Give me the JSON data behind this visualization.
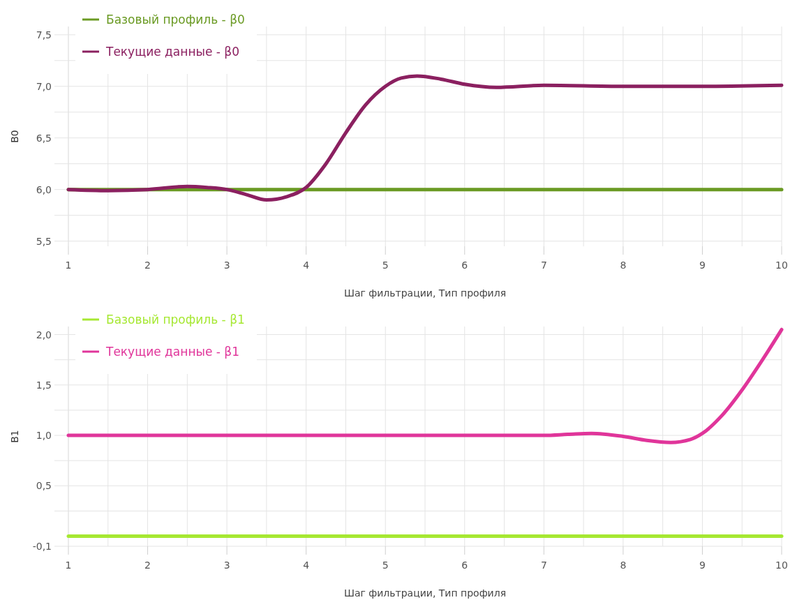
{
  "chart_data": [
    {
      "type": "line",
      "xlabel": "Шаг фильтрации, Тип профиля",
      "ylabel": "В0",
      "xlim": [
        1,
        10
      ],
      "ylim": [
        5.45,
        7.58
      ],
      "xticks": [
        1,
        {
          "value": 1.5,
          "label": null
        },
        2,
        {
          "value": 2.5,
          "label": null
        },
        3,
        {
          "value": 3.5,
          "label": null
        },
        4,
        {
          "value": 4.5,
          "label": null
        },
        5,
        {
          "value": 5.5,
          "label": null
        },
        6,
        {
          "value": 6.5,
          "label": null
        },
        7,
        {
          "value": 7.5,
          "label": null
        },
        8,
        {
          "value": 8.5,
          "label": null
        },
        9,
        {
          "value": 9.5,
          "label": null
        },
        10
      ],
      "yticks": [
        {
          "value": 5.5,
          "label": "5,5"
        },
        {
          "value": 5.75,
          "label": null
        },
        {
          "value": 6.0,
          "label": "6,0"
        },
        {
          "value": 6.25,
          "label": null
        },
        {
          "value": 6.5,
          "label": "6,5"
        },
        {
          "value": 6.75,
          "label": null
        },
        {
          "value": 7.0,
          "label": "7,0"
        },
        {
          "value": 7.25,
          "label": null
        },
        {
          "value": 7.5,
          "label": "7,5"
        }
      ],
      "grid": true,
      "legend": "top left",
      "marker": "none",
      "line_style": "solid",
      "series": [
        {
          "name": "Базовый профиль - β0",
          "color": "#6a9a23",
          "x": [
            1,
            10
          ],
          "values": [
            6.0,
            6.0
          ]
        },
        {
          "name": "Текущие данные - β0",
          "color": "#8b2060",
          "x": [
            1,
            1.5,
            2,
            2.5,
            2.75,
            3,
            3.25,
            3.5,
            3.75,
            4,
            4.25,
            4.5,
            4.75,
            5,
            5.2,
            5.4,
            5.7,
            6,
            6.4,
            7,
            8,
            9,
            10
          ],
          "values": [
            6.0,
            5.99,
            6.0,
            6.03,
            6.02,
            6.0,
            5.95,
            5.9,
            5.93,
            6.02,
            6.25,
            6.55,
            6.82,
            7.0,
            7.08,
            7.1,
            7.07,
            7.02,
            6.99,
            7.01,
            7.0,
            7.0,
            7.01
          ]
        }
      ]
    },
    {
      "type": "line",
      "xlabel": "Шаг фильтрации, Тип профиля",
      "ylabel": "В1",
      "xlim": [
        1,
        10
      ],
      "ylim": [
        -0.1,
        2.08
      ],
      "xticks": [
        1,
        {
          "value": 1.5,
          "label": null
        },
        2,
        {
          "value": 2.5,
          "label": null
        },
        3,
        {
          "value": 3.5,
          "label": null
        },
        4,
        {
          "value": 4.5,
          "label": null
        },
        5,
        {
          "value": 5.5,
          "label": null
        },
        6,
        {
          "value": 6.5,
          "label": null
        },
        7,
        {
          "value": 7.5,
          "label": null
        },
        8,
        {
          "value": 8.5,
          "label": null
        },
        9,
        {
          "value": 9.5,
          "label": null
        },
        10
      ],
      "yticks": [
        {
          "value": -0.1,
          "label": "-0,1"
        },
        {
          "value": 0.25,
          "label": null
        },
        {
          "value": 0.5,
          "label": "0,5"
        },
        {
          "value": 0.75,
          "label": null
        },
        {
          "value": 1.0,
          "label": "1,0"
        },
        {
          "value": 1.25,
          "label": null
        },
        {
          "value": 1.5,
          "label": "1,5"
        },
        {
          "value": 1.75,
          "label": null
        },
        {
          "value": 2.0,
          "label": "2,0"
        }
      ],
      "grid": true,
      "legend": "top left",
      "marker": "none",
      "line_style": "solid",
      "series": [
        {
          "name": "Базовый профиль - β1",
          "color": "#a6e832",
          "x": [
            1,
            10
          ],
          "values": [
            0.0,
            0.0
          ]
        },
        {
          "name": "Текущие данные - β1",
          "color": "#e0359a",
          "x": [
            1,
            2,
            3,
            4,
            5,
            6,
            6.5,
            7,
            7.3,
            7.6,
            8,
            8.3,
            8.6,
            8.85,
            9,
            9.25,
            9.5,
            9.75,
            10
          ],
          "values": [
            1.0,
            1.0,
            1.0,
            1.0,
            1.0,
            1.0,
            1.0,
            1.0,
            1.01,
            1.02,
            0.99,
            0.95,
            0.93,
            0.96,
            1.02,
            1.2,
            1.45,
            1.74,
            2.05
          ]
        }
      ]
    }
  ]
}
